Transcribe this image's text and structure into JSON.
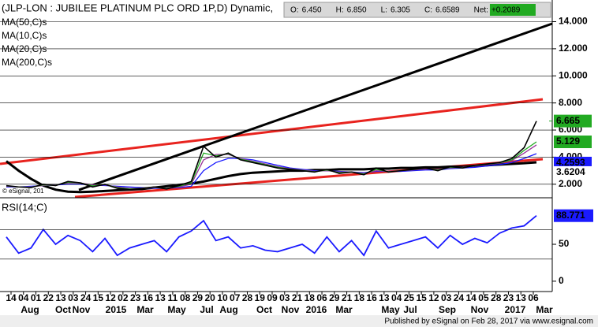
{
  "chart_data": [
    {
      "type": "line",
      "title": "(JLP-LON : JUBILEE PLATINUM PLC ORD 1P,D) Dynamic,",
      "quote": [
        {
          "label": "O:",
          "value": "6.450"
        },
        {
          "label": "H:",
          "value": "6.850"
        },
        {
          "label": "L:",
          "value": "6.305"
        },
        {
          "label": "C:",
          "value": "6.6589"
        },
        {
          "label": "Net:",
          "value": "+0.2089"
        }
      ],
      "copyright": "© eSignal, 201",
      "ylim": [
        1.0,
        15.6
      ],
      "yticks": [
        {
          "value": 2,
          "label": "2.000"
        },
        {
          "value": 4,
          "label": "4.000"
        },
        {
          "value": 6,
          "label": "6.000"
        },
        {
          "value": 8,
          "label": "8.000"
        },
        {
          "value": 10,
          "label": "10.000"
        },
        {
          "value": 12,
          "label": "12.000"
        },
        {
          "value": 14,
          "label": "14.000"
        }
      ],
      "grid": true,
      "last_price": 6.665,
      "last_price_color": "#22aa22",
      "series": [
        {
          "color": "#000000",
          "values": [
            1.9,
            1.8,
            1.75,
            2.0,
            1.9,
            2.2,
            2.1,
            1.8,
            2.0,
            1.7,
            1.6,
            1.7,
            1.8,
            1.65,
            1.9,
            2.2,
            4.8,
            4.0,
            4.3,
            3.8,
            3.6,
            3.4,
            3.2,
            3.1,
            3.0,
            2.9,
            3.1,
            2.8,
            2.9,
            2.7,
            3.2,
            2.9,
            3.0,
            3.1,
            3.2,
            3.0,
            3.3,
            3.2,
            3.4,
            3.5,
            3.6,
            3.9,
            4.7,
            6.6589
          ]
        },
        {
          "name": "MA(50,C)s",
          "color": "#1a1aff",
          "values": [
            1.8,
            1.8,
            1.85,
            1.9,
            1.95,
            2.0,
            2.0,
            1.95,
            1.9,
            1.85,
            1.8,
            1.75,
            1.7,
            1.7,
            1.75,
            1.85,
            3.0,
            3.6,
            3.9,
            3.9,
            3.8,
            3.6,
            3.4,
            3.2,
            3.1,
            3.0,
            3.0,
            2.95,
            2.9,
            2.85,
            2.95,
            2.95,
            2.95,
            3.0,
            3.05,
            3.05,
            3.15,
            3.2,
            3.25,
            3.35,
            3.45,
            3.6,
            3.9,
            4.2593
          ]
        },
        {
          "name": "MA(10,C)s",
          "color": "#22aa22",
          "values": [
            1.88,
            1.8,
            1.78,
            1.95,
            1.92,
            2.15,
            2.1,
            1.88,
            1.98,
            1.75,
            1.65,
            1.7,
            1.78,
            1.68,
            1.85,
            2.1,
            4.3,
            4.1,
            4.25,
            3.85,
            3.65,
            3.45,
            3.25,
            3.12,
            3.02,
            2.92,
            3.05,
            2.85,
            2.9,
            2.75,
            3.1,
            2.92,
            3.0,
            3.08,
            3.18,
            3.05,
            3.25,
            3.22,
            3.38,
            3.48,
            3.58,
            3.8,
            4.5,
            5.129
          ]
        },
        {
          "name": "MA(20,C)s",
          "color": "#993399",
          "values": [
            1.85,
            1.8,
            1.8,
            1.9,
            1.95,
            2.1,
            2.1,
            1.95,
            1.95,
            1.8,
            1.7,
            1.7,
            1.75,
            1.7,
            1.8,
            2.0,
            3.8,
            4.2,
            4.2,
            3.9,
            3.7,
            3.5,
            3.3,
            3.15,
            3.05,
            2.95,
            3.0,
            2.9,
            2.9,
            2.8,
            3.0,
            2.95,
            3.0,
            3.05,
            3.15,
            3.1,
            3.2,
            3.25,
            3.35,
            3.45,
            3.55,
            3.75,
            4.3,
            4.9
          ]
        },
        {
          "name": "MA(200,C)s",
          "color": "#000000",
          "values": [
            3.7,
            3.0,
            2.4,
            1.9,
            1.6,
            1.45,
            1.42,
            1.45,
            1.5,
            1.55,
            1.6,
            1.65,
            1.75,
            1.85,
            1.95,
            2.05,
            2.2,
            2.4,
            2.6,
            2.75,
            2.85,
            2.9,
            2.95,
            3.0,
            3.0,
            3.05,
            3.05,
            3.1,
            3.1,
            3.1,
            3.15,
            3.15,
            3.2,
            3.2,
            3.25,
            3.25,
            3.3,
            3.3,
            3.35,
            3.4,
            3.45,
            3.5,
            3.55,
            3.6204
          ]
        }
      ]
    },
    {
      "type": "line",
      "title": "RSI(14;C)",
      "color": "#1a1aff",
      "ylim": [
        -14,
        113
      ],
      "yticks": [
        0,
        50
      ],
      "bands": [
        30,
        70
      ],
      "values": [
        60,
        38,
        45,
        70,
        50,
        62,
        55,
        40,
        58,
        35,
        45,
        50,
        55,
        40,
        60,
        68,
        82,
        55,
        60,
        45,
        48,
        42,
        40,
        45,
        50,
        38,
        60,
        40,
        55,
        35,
        68,
        45,
        50,
        55,
        60,
        45,
        62,
        50,
        58,
        52,
        65,
        72,
        75,
        88.771
      ],
      "day_labels": [
        "14",
        "04",
        "01",
        "22",
        "13",
        "03",
        "24",
        "15",
        "12",
        "02",
        "23",
        "16",
        "13",
        "11",
        "08",
        "29",
        "20",
        "10",
        "07",
        "28",
        "19",
        "09",
        "03",
        "21",
        "18",
        "06",
        "29",
        "21",
        "18",
        "16",
        "13",
        "04",
        "25",
        "15",
        "12",
        "03",
        "24",
        "14",
        "05",
        "28",
        "23",
        "13",
        "06"
      ],
      "month_labels": [
        "Aug",
        "Oct",
        "Nov",
        "2015",
        "Mar",
        "May",
        "Jul",
        "Aug",
        "Oct",
        "Nov",
        "2016",
        "Mar",
        "May",
        "Jul",
        "Sep",
        "Nov",
        "2017",
        "Mar"
      ],
      "footer": "Published by eSignal on Feb 28, 2017 via www.esignal.com"
    }
  ]
}
